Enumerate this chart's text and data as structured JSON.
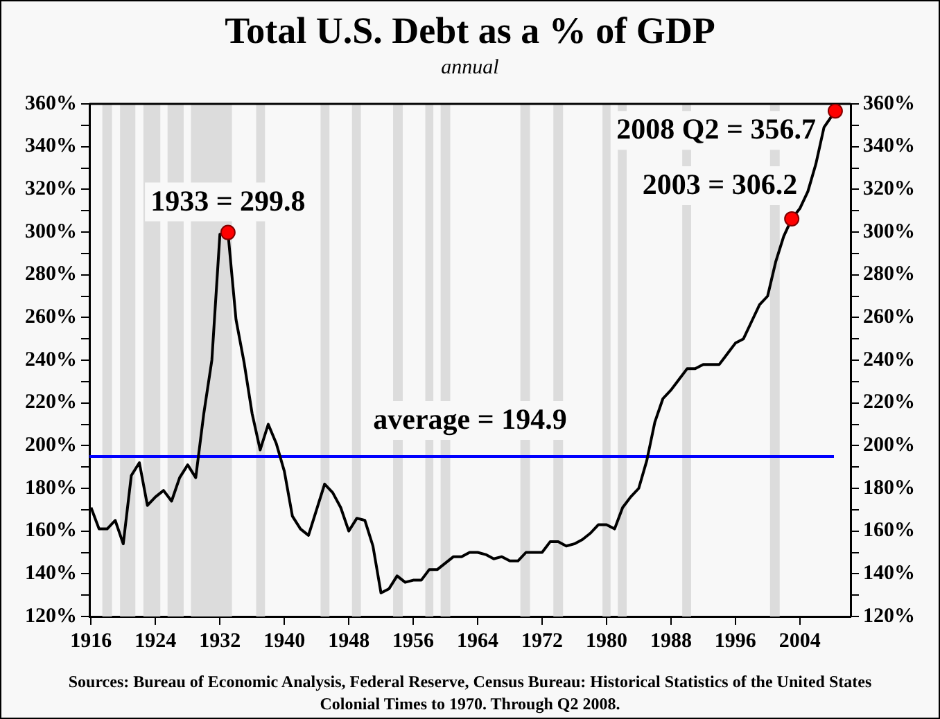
{
  "chart_data": {
    "type": "line",
    "title": "Total U.S. Debt as a % of GDP",
    "subtitle": "annual",
    "annotations": [
      {
        "text": "1933 = 299.8",
        "x": 1933,
        "y": 299.8
      },
      {
        "text": "2003 = 306.2",
        "x": 2003,
        "y": 306.2
      },
      {
        "text": "2008 Q2 = 356.7",
        "x": 2008.4,
        "y": 356.7
      },
      "Sources: Bureau of Economic Analysis, Federal Reserve, Census Bureau: Historical Statistics of the United States Colonial Times to 1970.   Through Q2 2008."
    ],
    "series": [
      {
        "color": "#000000",
        "x": [
          1916,
          1917,
          1918,
          1919,
          1920,
          1921,
          1922,
          1923,
          1924,
          1925,
          1926,
          1927,
          1928,
          1929,
          1930,
          1931,
          1932,
          1933,
          1934,
          1935,
          1936,
          1937,
          1938,
          1939,
          1940,
          1941,
          1942,
          1943,
          1944,
          1945,
          1946,
          1947,
          1948,
          1949,
          1950,
          1951,
          1952,
          1953,
          1954,
          1955,
          1956,
          1957,
          1958,
          1959,
          1960,
          1961,
          1962,
          1963,
          1964,
          1965,
          1966,
          1967,
          1968,
          1969,
          1970,
          1971,
          1972,
          1973,
          1974,
          1975,
          1976,
          1977,
          1978,
          1979,
          1980,
          1981,
          1982,
          1983,
          1984,
          1985,
          1986,
          1987,
          1988,
          1989,
          1990,
          1991,
          1992,
          1993,
          1994,
          1995,
          1996,
          1997,
          1998,
          1999,
          2000,
          2001,
          2002,
          2003,
          2004,
          2005,
          2006,
          2007,
          2008.4
        ],
        "values": [
          171,
          161,
          161,
          165,
          154,
          186,
          192,
          172,
          176,
          179,
          174,
          185,
          191,
          185,
          215,
          240,
          299,
          299.8,
          259,
          239,
          215,
          198,
          210,
          201,
          188,
          167,
          161,
          158,
          170,
          182,
          178,
          171,
          160,
          166,
          165,
          153,
          131,
          133,
          139,
          136,
          137,
          137,
          142,
          142,
          145,
          148,
          148,
          150,
          150,
          149,
          147,
          148,
          146,
          146,
          150,
          150,
          150,
          155,
          155,
          153,
          154,
          156,
          159,
          163,
          163,
          161,
          171,
          176,
          180,
          193,
          211,
          222,
          226,
          231,
          236,
          236,
          238,
          238,
          238,
          243,
          248,
          250,
          258,
          266,
          270,
          286,
          298,
          306.2,
          311,
          319,
          332,
          349,
          356.7
        ]
      },
      {
        "type": "scatter",
        "color": "#ff0000",
        "x": [
          1933,
          2003,
          2008.4
        ],
        "values": [
          299.8,
          306.2,
          356.7
        ]
      }
    ],
    "xlim": [
      1915.8,
      2010.3
    ],
    "xticks": [
      1916,
      1924,
      1932,
      1940,
      1948,
      1956,
      1964,
      1972,
      1980,
      1988,
      1996,
      2004
    ],
    "ylim": [
      120,
      360
    ],
    "yticks": [
      {
        "value": 120,
        "label": "120%"
      },
      {
        "value": 130,
        "label": null
      },
      {
        "value": 140,
        "label": "140%"
      },
      {
        "value": 150,
        "label": null
      },
      {
        "value": 160,
        "label": "160%"
      },
      {
        "value": 170,
        "label": null
      },
      {
        "value": 180,
        "label": "180%"
      },
      {
        "value": 190,
        "label": null
      },
      {
        "value": 200,
        "label": "200%"
      },
      {
        "value": 210,
        "label": null
      },
      {
        "value": 220,
        "label": "220%"
      },
      {
        "value": 230,
        "label": null
      },
      {
        "value": 240,
        "label": "240%"
      },
      {
        "value": 250,
        "label": null
      },
      {
        "value": 260,
        "label": "260%"
      },
      {
        "value": 270,
        "label": null
      },
      {
        "value": 280,
        "label": "280%"
      },
      {
        "value": 290,
        "label": null
      },
      {
        "value": 300,
        "label": "300%"
      },
      {
        "value": 310,
        "label": null
      },
      {
        "value": 320,
        "label": "320%"
      },
      {
        "value": 330,
        "label": null
      },
      {
        "value": 340,
        "label": "340%"
      },
      {
        "value": 350,
        "label": null
      },
      {
        "value": 360,
        "label": "360%"
      }
    ],
    "y2lim": [
      120,
      360
    ],
    "y2ticks": [
      {
        "value": 120,
        "label": "120%"
      },
      {
        "value": 130,
        "label": null
      },
      {
        "value": 140,
        "label": "140%"
      },
      {
        "value": 150,
        "label": null
      },
      {
        "value": 160,
        "label": "160%"
      },
      {
        "value": 170,
        "label": null
      },
      {
        "value": 180,
        "label": "180%"
      },
      {
        "value": 190,
        "label": null
      },
      {
        "value": 200,
        "label": "200%"
      },
      {
        "value": 210,
        "label": null
      },
      {
        "value": 220,
        "label": "220%"
      },
      {
        "value": 230,
        "label": null
      },
      {
        "value": 240,
        "label": "240%"
      },
      {
        "value": 250,
        "label": null
      },
      {
        "value": 260,
        "label": "260%"
      },
      {
        "value": 270,
        "label": null
      },
      {
        "value": 280,
        "label": "280%"
      },
      {
        "value": 290,
        "label": null
      },
      {
        "value": 300,
        "label": "300%"
      },
      {
        "value": 310,
        "label": null
      },
      {
        "value": 320,
        "label": "320%"
      },
      {
        "value": 330,
        "label": null
      },
      {
        "value": 340,
        "label": "340%"
      },
      {
        "value": 350,
        "label": null
      },
      {
        "value": 360,
        "label": "360%"
      }
    ],
    "ref_lines": [
      {
        "axis": "y",
        "value": 194.9,
        "label": "average = 194.9",
        "color": "#0000ff"
      }
    ],
    "bands": [
      {
        "axis": "x",
        "from": 1917.4,
        "to": 1918.6,
        "color": "#dcdcdc"
      },
      {
        "axis": "x",
        "from": 1919.6,
        "to": 1921.5,
        "color": "#dcdcdc"
      },
      {
        "axis": "x",
        "from": 1922.5,
        "to": 1924.6,
        "color": "#dcdcdc"
      },
      {
        "axis": "x",
        "from": 1925.5,
        "to": 1927.5,
        "color": "#dcdcdc"
      },
      {
        "axis": "x",
        "from": 1928.4,
        "to": 1933.5,
        "color": "#dcdcdc"
      },
      {
        "axis": "x",
        "from": 1936.5,
        "to": 1937.6,
        "color": "#dcdcdc"
      },
      {
        "axis": "x",
        "from": 1944.5,
        "to": 1945.6,
        "color": "#dcdcdc"
      },
      {
        "axis": "x",
        "from": 1948.4,
        "to": 1949.5,
        "color": "#dcdcdc"
      },
      {
        "axis": "x",
        "from": 1953.5,
        "to": 1954.7,
        "color": "#dcdcdc"
      },
      {
        "axis": "x",
        "from": 1957.5,
        "to": 1958.5,
        "color": "#dcdcdc"
      },
      {
        "axis": "x",
        "from": 1959.4,
        "to": 1960.6,
        "color": "#dcdcdc"
      },
      {
        "axis": "x",
        "from": 1969.3,
        "to": 1970.5,
        "color": "#dcdcdc"
      },
      {
        "axis": "x",
        "from": 1973.4,
        "to": 1974.6,
        "color": "#dcdcdc"
      },
      {
        "axis": "x",
        "from": 1979.5,
        "to": 1980.5,
        "color": "#dcdcdc"
      },
      {
        "axis": "x",
        "from": 1981.4,
        "to": 1982.5,
        "color": "#dcdcdc"
      },
      {
        "axis": "x",
        "from": 1989.4,
        "to": 1990.5,
        "color": "#dcdcdc"
      },
      {
        "axis": "x",
        "from": 2000.3,
        "to": 2001.5,
        "color": "#dcdcdc"
      }
    ]
  }
}
